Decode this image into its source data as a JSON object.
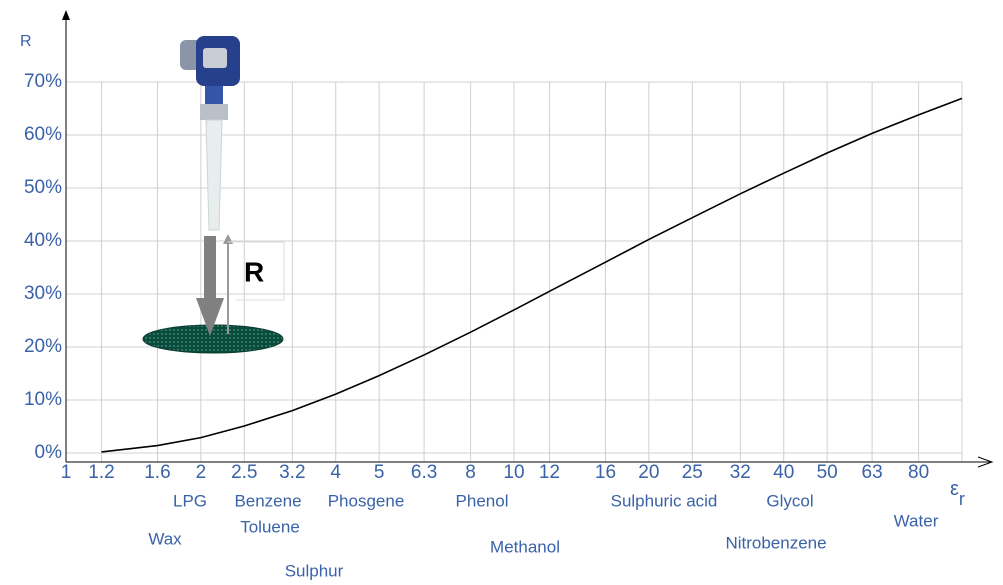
{
  "chart_data": {
    "type": "line",
    "y_label": "R",
    "x_label": "ε",
    "x_label_sub": "r",
    "x": [
      1.2,
      1.6,
      2,
      2.5,
      3.2,
      4,
      5,
      6.3,
      8,
      10,
      12,
      16,
      20,
      25,
      32,
      40,
      50,
      63,
      80,
      100
    ],
    "series": [
      {
        "name": "R",
        "color": "#000000",
        "values": [
          0.2,
          1.4,
          2.9,
          5.1,
          8.0,
          11.1,
          14.6,
          18.5,
          22.8,
          27.0,
          30.5,
          36.0,
          40.3,
          44.4,
          48.9,
          52.8,
          56.6,
          60.3,
          63.8,
          66.9
        ]
      }
    ],
    "xlim": [
      1,
      100
    ],
    "xscale": "log",
    "xticks": [
      1,
      1.2,
      1.6,
      2,
      2.5,
      3.2,
      4,
      5,
      6.3,
      8,
      10,
      12,
      16,
      20,
      25,
      32,
      40,
      50,
      63,
      80
    ],
    "ylim": [
      0,
      70
    ],
    "yticks": [
      {
        "value": 0,
        "label": "0%"
      },
      {
        "value": 10,
        "label": "10%"
      },
      {
        "value": 20,
        "label": "20%"
      },
      {
        "value": 30,
        "label": "30%"
      },
      {
        "value": 40,
        "label": "40%"
      },
      {
        "value": 50,
        "label": "50%"
      },
      {
        "value": 60,
        "label": "60%"
      },
      {
        "value": 70,
        "label": "70%"
      }
    ],
    "grid": true,
    "annotations": [
      "LPG",
      "Wax",
      "Benzene",
      "Toluene",
      "Phosgene",
      "Sulphur",
      "Phenol",
      "Methanol",
      "Sulphuric acid",
      "Nitrobenzene",
      "Glycol",
      "Water"
    ],
    "illustration_label": "R"
  }
}
